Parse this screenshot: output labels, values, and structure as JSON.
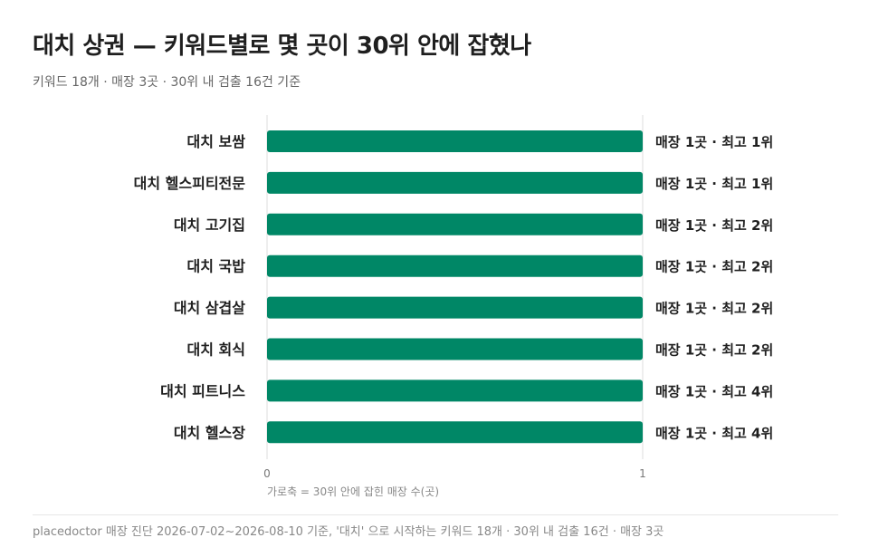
{
  "header": {
    "title": "대치 상권 — 키워드별로 몇 곳이 30위 안에 잡혔나",
    "subtitle": "키워드 18개 · 매장 3곳 · 30위 내 검출 16건 기준"
  },
  "footer": {
    "note": "placedoctor 매장 진단 2026-07-02~2026-08-10 기준, '대치' 으로 시작하는 키워드 18개 · 30위 내 검출 16건 · 매장 3곳"
  },
  "colors": {
    "bar": "#008766",
    "grid": "#dddddd",
    "label": "#1f1f1f",
    "tick": "#777777"
  },
  "chart_data": {
    "type": "bar",
    "orientation": "horizontal",
    "categories": [
      "대치 보쌈",
      "대치 헬스피티전문",
      "대치 고기집",
      "대치 국밥",
      "대치 삼겹살",
      "대치 회식",
      "대치 피트니스",
      "대치 헬스장"
    ],
    "values": [
      1,
      1,
      1,
      1,
      1,
      1,
      1,
      1
    ],
    "data_labels": [
      "매장 1곳 · 최고 1위",
      "매장 1곳 · 최고 1위",
      "매장 1곳 · 최고 2위",
      "매장 1곳 · 최고 2위",
      "매장 1곳 · 최고 2위",
      "매장 1곳 · 최고 2위",
      "매장 1곳 · 최고 4위",
      "매장 1곳 · 최고 4위"
    ],
    "xlabel": "가로축 = 30위 안에 잡힌 매장 수(곳)",
    "xlim": [
      0,
      1
    ],
    "xticks": [
      "0",
      "1"
    ],
    "grid": true
  }
}
